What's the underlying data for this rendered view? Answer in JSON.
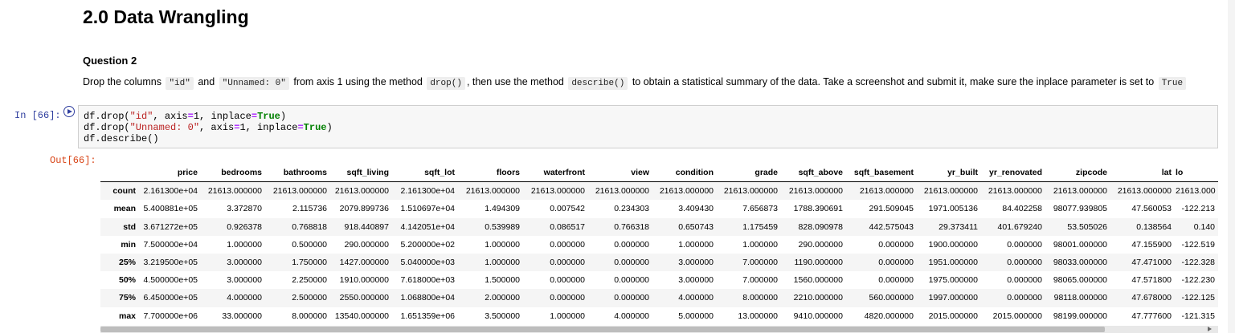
{
  "heading": "2.0 Data Wrangling",
  "question": {
    "label": "Question 2",
    "parts": [
      {
        "t": "Drop the columns "
      },
      {
        "c": "\"id\""
      },
      {
        "t": " and "
      },
      {
        "c": "\"Unnamed: 0\""
      },
      {
        "t": " from axis 1 using the method "
      },
      {
        "c": "drop()"
      },
      {
        "t": ", then use the method "
      },
      {
        "c": "describe()"
      },
      {
        "t": " to obtain a statistical summary of the data. Take a screenshot and submit it, make sure the inplace parameter is set to "
      },
      {
        "c": "True"
      }
    ]
  },
  "input_prompt": "In [66]:",
  "output_prompt": "Out[66]:",
  "code_lines": [
    [
      {
        "t": "df.drop("
      },
      {
        "s": "\"id\""
      },
      {
        "t": ", axis"
      },
      {
        "o": "="
      },
      {
        "t": "1, inplace"
      },
      {
        "o": "="
      },
      {
        "k": "True"
      },
      {
        "t": ")"
      }
    ],
    [
      {
        "t": "df.drop("
      },
      {
        "s": "\"Unnamed: 0\""
      },
      {
        "t": ", axis"
      },
      {
        "o": "="
      },
      {
        "t": "1, inplace"
      },
      {
        "o": "="
      },
      {
        "k": "True"
      },
      {
        "t": ")"
      }
    ],
    [
      {
        "t": "df.describe()"
      }
    ]
  ],
  "table": {
    "columns": [
      "price",
      "bedrooms",
      "bathrooms",
      "sqft_living",
      "sqft_lot",
      "floors",
      "waterfront",
      "view",
      "condition",
      "grade",
      "sqft_above",
      "sqft_basement",
      "yr_built",
      "yr_renovated",
      "zipcode",
      "lat",
      "lo"
    ],
    "rows": [
      {
        "label": "count",
        "values": [
          "2.161300e+04",
          "21613.000000",
          "21613.000000",
          "21613.000000",
          "2.161300e+04",
          "21613.000000",
          "21613.000000",
          "21613.000000",
          "21613.000000",
          "21613.000000",
          "21613.000000",
          "21613.000000",
          "21613.000000",
          "21613.000000",
          "21613.000000",
          "21613.000000",
          "21613.000"
        ]
      },
      {
        "label": "mean",
        "values": [
          "5.400881e+05",
          "3.372870",
          "2.115736",
          "2079.899736",
          "1.510697e+04",
          "1.494309",
          "0.007542",
          "0.234303",
          "3.409430",
          "7.656873",
          "1788.390691",
          "291.509045",
          "1971.005136",
          "84.402258",
          "98077.939805",
          "47.560053",
          "-122.213"
        ]
      },
      {
        "label": "std",
        "values": [
          "3.671272e+05",
          "0.926378",
          "0.768818",
          "918.440897",
          "4.142051e+04",
          "0.539989",
          "0.086517",
          "0.766318",
          "0.650743",
          "1.175459",
          "828.090978",
          "442.575043",
          "29.373411",
          "401.679240",
          "53.505026",
          "0.138564",
          "0.140"
        ]
      },
      {
        "label": "min",
        "values": [
          "7.500000e+04",
          "1.000000",
          "0.500000",
          "290.000000",
          "5.200000e+02",
          "1.000000",
          "0.000000",
          "0.000000",
          "1.000000",
          "1.000000",
          "290.000000",
          "0.000000",
          "1900.000000",
          "0.000000",
          "98001.000000",
          "47.155900",
          "-122.519"
        ]
      },
      {
        "label": "25%",
        "values": [
          "3.219500e+05",
          "3.000000",
          "1.750000",
          "1427.000000",
          "5.040000e+03",
          "1.000000",
          "0.000000",
          "0.000000",
          "3.000000",
          "7.000000",
          "1190.000000",
          "0.000000",
          "1951.000000",
          "0.000000",
          "98033.000000",
          "47.471000",
          "-122.328"
        ]
      },
      {
        "label": "50%",
        "values": [
          "4.500000e+05",
          "3.000000",
          "2.250000",
          "1910.000000",
          "7.618000e+03",
          "1.500000",
          "0.000000",
          "0.000000",
          "3.000000",
          "7.000000",
          "1560.000000",
          "0.000000",
          "1975.000000",
          "0.000000",
          "98065.000000",
          "47.571800",
          "-122.230"
        ]
      },
      {
        "label": "75%",
        "values": [
          "6.450000e+05",
          "4.000000",
          "2.500000",
          "2550.000000",
          "1.068800e+04",
          "2.000000",
          "0.000000",
          "0.000000",
          "4.000000",
          "8.000000",
          "2210.000000",
          "560.000000",
          "1997.000000",
          "0.000000",
          "98118.000000",
          "47.678000",
          "-122.125"
        ]
      },
      {
        "label": "max",
        "values": [
          "7.700000e+06",
          "33.000000",
          "8.000000",
          "13540.000000",
          "1.651359e+06",
          "3.500000",
          "1.000000",
          "4.000000",
          "5.000000",
          "13.000000",
          "9410.000000",
          "4820.000000",
          "2015.000000",
          "2015.000000",
          "98199.000000",
          "47.777600",
          "-121.315"
        ]
      }
    ]
  }
}
